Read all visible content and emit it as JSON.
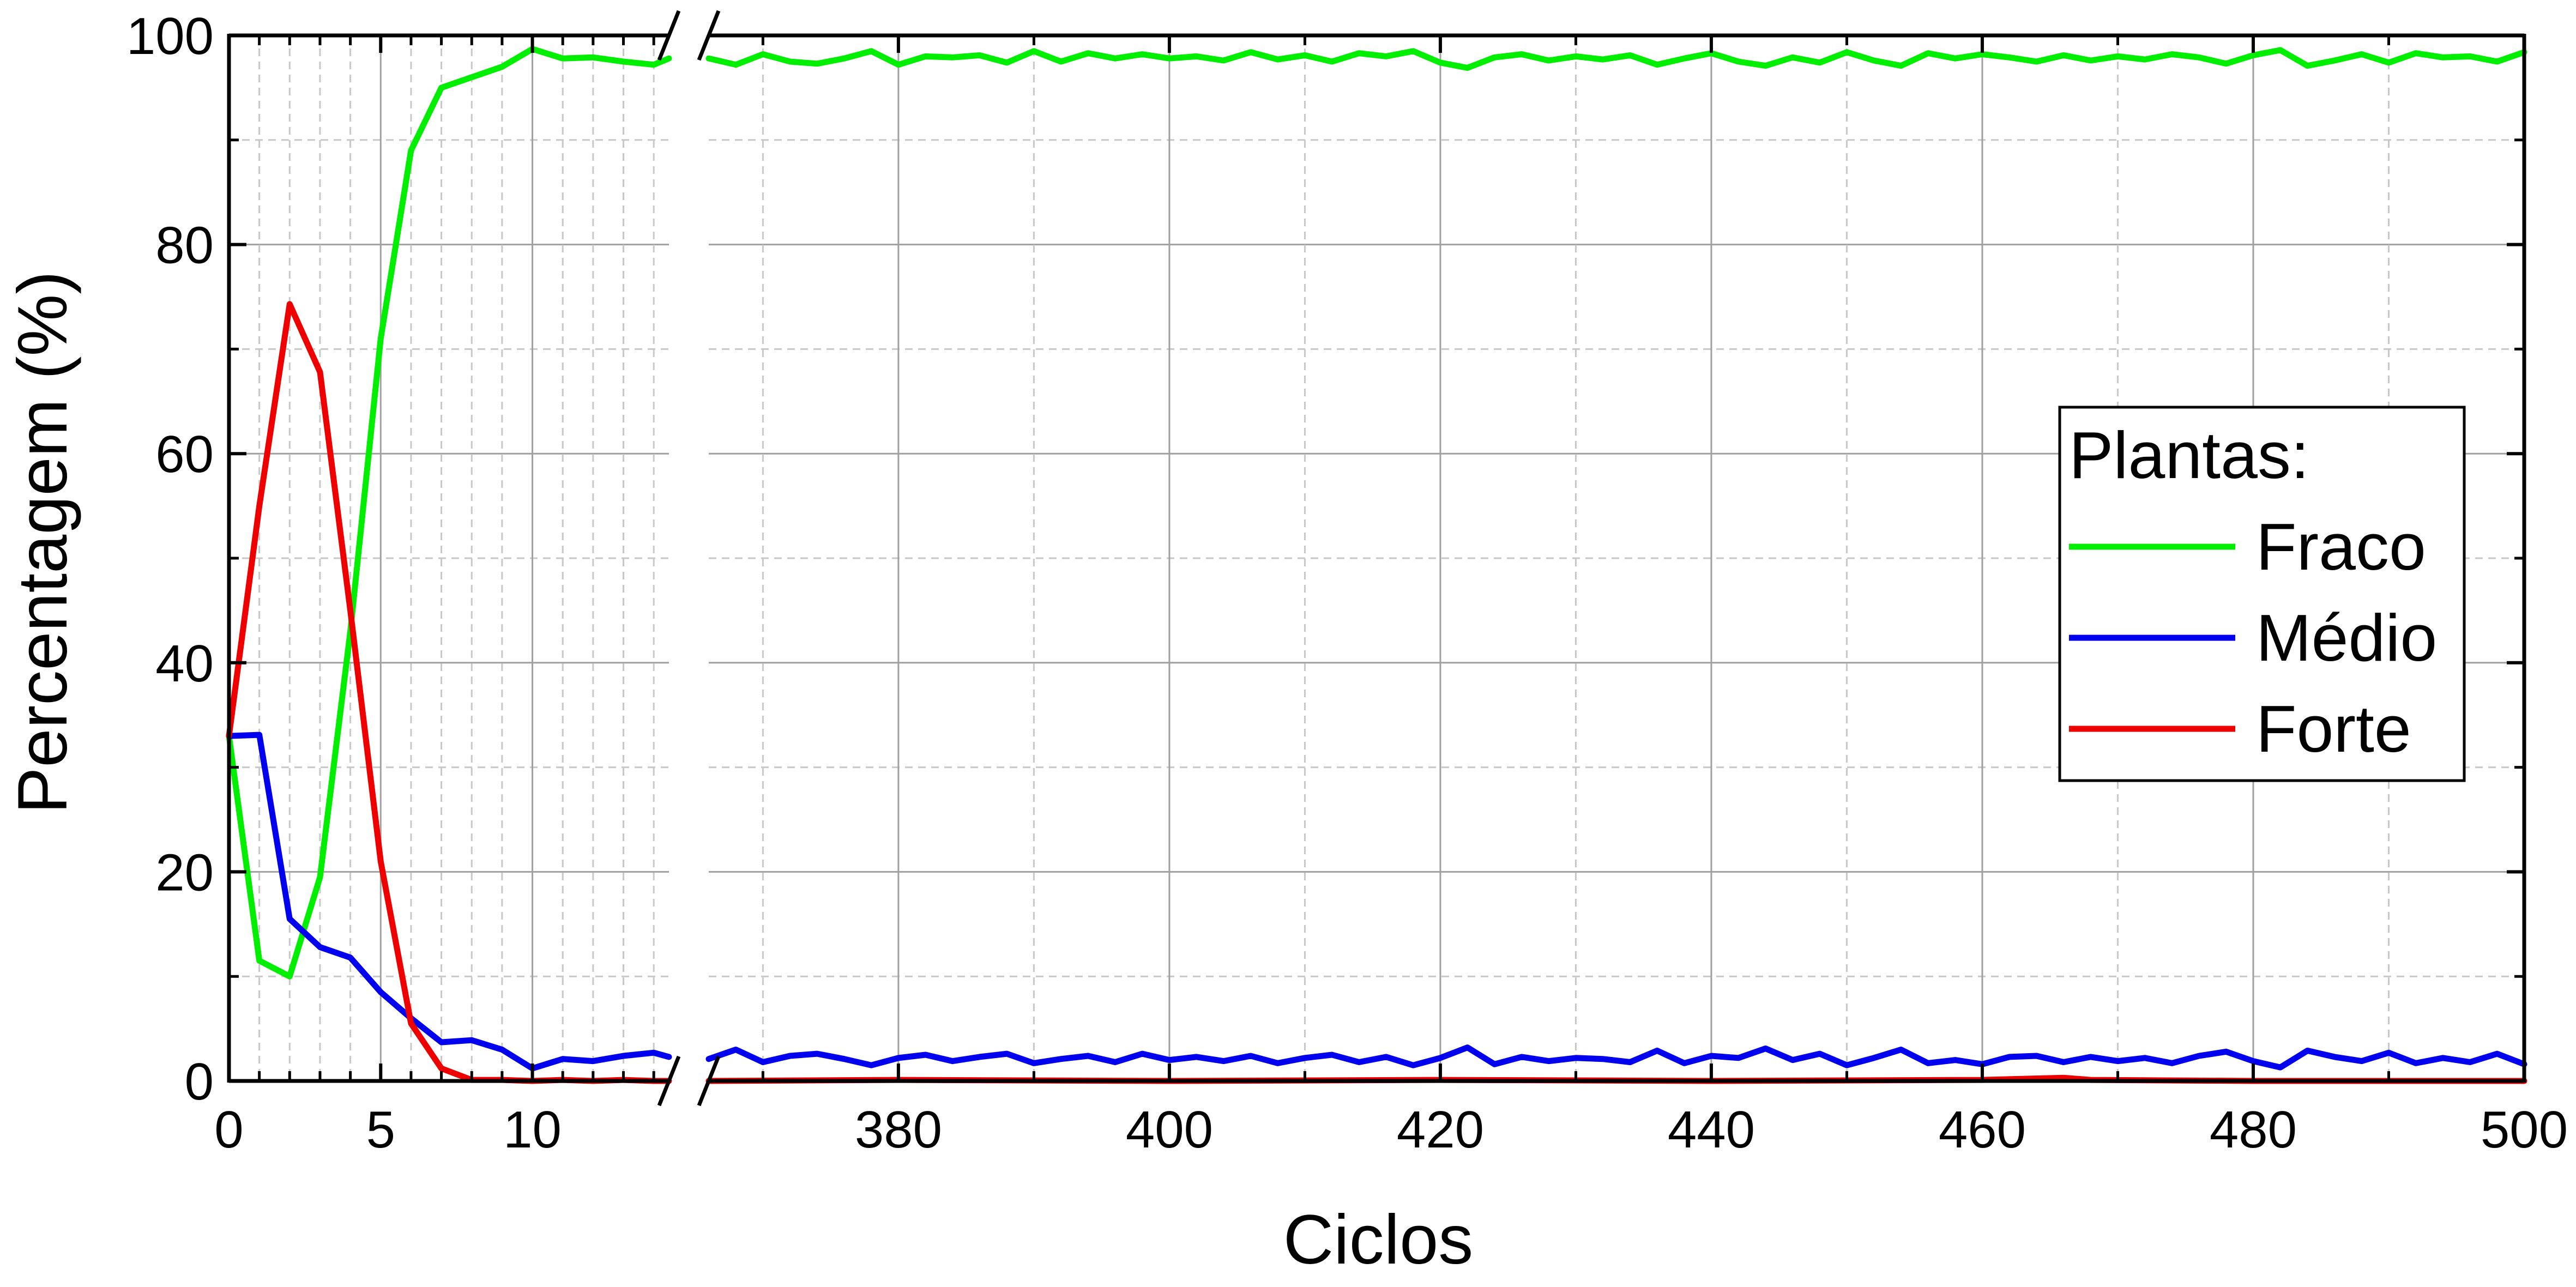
{
  "chart_data": {
    "type": "line",
    "title": "",
    "xlabel": "Ciclos",
    "ylabel": "Percentagem (%)",
    "ylim": [
      0,
      100
    ],
    "yticks": [
      0,
      20,
      40,
      60,
      80,
      100
    ],
    "grid": true,
    "x_axis_break": true,
    "xsegments": [
      {
        "xlim": [
          0,
          14.5
        ],
        "ticks": [
          0,
          5,
          10
        ]
      },
      {
        "xlim": [
          366,
          500
        ],
        "ticks": [
          380,
          400,
          420,
          440,
          460,
          480,
          500
        ]
      }
    ],
    "legend": {
      "title": "Plantas:",
      "placement": "right",
      "entries": [
        "Fraco",
        "Médio",
        "Forte"
      ]
    },
    "series": [
      {
        "name": "Fraco",
        "color": "#00ee00",
        "points": [
          [
            0,
            33
          ],
          [
            1,
            11.5
          ],
          [
            2,
            10
          ],
          [
            3,
            19.5
          ],
          [
            4,
            43
          ],
          [
            5,
            71
          ],
          [
            6,
            89
          ],
          [
            7,
            95
          ],
          [
            8,
            96
          ],
          [
            9,
            97
          ],
          [
            10,
            98.7
          ],
          [
            11,
            97.8
          ],
          [
            12,
            97.9
          ],
          [
            13,
            97.5
          ],
          [
            14,
            97.2
          ],
          [
            14.5,
            97.8
          ],
          [
            366,
            97.8
          ],
          [
            368,
            97.2
          ],
          [
            370,
            98.2
          ],
          [
            372,
            97.5
          ],
          [
            374,
            97.3
          ],
          [
            376,
            97.8
          ],
          [
            378,
            98.5
          ],
          [
            380,
            97.2
          ],
          [
            382,
            98
          ],
          [
            384,
            97.9
          ],
          [
            386,
            98.1
          ],
          [
            388,
            97.4
          ],
          [
            390,
            98.5
          ],
          [
            392,
            97.5
          ],
          [
            394,
            98.3
          ],
          [
            396,
            97.8
          ],
          [
            398,
            98.2
          ],
          [
            400,
            97.8
          ],
          [
            402,
            98
          ],
          [
            404,
            97.6
          ],
          [
            406,
            98.4
          ],
          [
            408,
            97.7
          ],
          [
            410,
            98.1
          ],
          [
            412,
            97.5
          ],
          [
            414,
            98.3
          ],
          [
            416,
            98
          ],
          [
            418,
            98.5
          ],
          [
            420,
            97.4
          ],
          [
            422,
            96.9
          ],
          [
            424,
            97.9
          ],
          [
            426,
            98.2
          ],
          [
            428,
            97.6
          ],
          [
            430,
            98
          ],
          [
            432,
            97.7
          ],
          [
            434,
            98.1
          ],
          [
            436,
            97.2
          ],
          [
            438,
            97.8
          ],
          [
            440,
            98.3
          ],
          [
            442,
            97.5
          ],
          [
            444,
            97.1
          ],
          [
            446,
            97.9
          ],
          [
            448,
            97.4
          ],
          [
            450,
            98.4
          ],
          [
            452,
            97.6
          ],
          [
            454,
            97.1
          ],
          [
            456,
            98.3
          ],
          [
            458,
            97.8
          ],
          [
            460,
            98.2
          ],
          [
            462,
            97.9
          ],
          [
            464,
            97.5
          ],
          [
            466,
            98.1
          ],
          [
            468,
            97.6
          ],
          [
            470,
            98
          ],
          [
            472,
            97.7
          ],
          [
            474,
            98.2
          ],
          [
            476,
            97.9
          ],
          [
            478,
            97.3
          ],
          [
            480,
            98.1
          ],
          [
            482,
            98.6
          ],
          [
            484,
            97.1
          ],
          [
            486,
            97.6
          ],
          [
            488,
            98.2
          ],
          [
            490,
            97.4
          ],
          [
            492,
            98.3
          ],
          [
            494,
            97.9
          ],
          [
            496,
            98
          ],
          [
            498,
            97.5
          ],
          [
            500,
            98.4
          ]
        ]
      },
      {
        "name": "Médio",
        "color": "#0000ee",
        "points": [
          [
            0,
            33
          ],
          [
            1,
            33.1
          ],
          [
            2,
            15.5
          ],
          [
            3,
            12.8
          ],
          [
            4,
            11.8
          ],
          [
            5,
            8.5
          ],
          [
            6,
            6
          ],
          [
            7,
            3.7
          ],
          [
            8,
            3.9
          ],
          [
            9,
            3
          ],
          [
            10,
            1.2
          ],
          [
            11,
            2.1
          ],
          [
            12,
            1.9
          ],
          [
            13,
            2.4
          ],
          [
            14,
            2.7
          ],
          [
            14.5,
            2.3
          ],
          [
            366,
            2.1
          ],
          [
            368,
            3
          ],
          [
            370,
            1.8
          ],
          [
            372,
            2.4
          ],
          [
            374,
            2.6
          ],
          [
            376,
            2.1
          ],
          [
            378,
            1.5
          ],
          [
            380,
            2.2
          ],
          [
            382,
            2.5
          ],
          [
            384,
            1.9
          ],
          [
            386,
            2.3
          ],
          [
            388,
            2.6
          ],
          [
            390,
            1.7
          ],
          [
            392,
            2.1
          ],
          [
            394,
            2.4
          ],
          [
            396,
            1.8
          ],
          [
            398,
            2.6
          ],
          [
            400,
            2
          ],
          [
            402,
            2.3
          ],
          [
            404,
            1.9
          ],
          [
            406,
            2.4
          ],
          [
            408,
            1.7
          ],
          [
            410,
            2.2
          ],
          [
            412,
            2.5
          ],
          [
            414,
            1.8
          ],
          [
            416,
            2.3
          ],
          [
            418,
            1.5
          ],
          [
            420,
            2.2
          ],
          [
            422,
            3.2
          ],
          [
            424,
            1.6
          ],
          [
            426,
            2.3
          ],
          [
            428,
            1.9
          ],
          [
            430,
            2.2
          ],
          [
            432,
            2.1
          ],
          [
            434,
            1.8
          ],
          [
            436,
            2.9
          ],
          [
            438,
            1.7
          ],
          [
            440,
            2.4
          ],
          [
            442,
            2.2
          ],
          [
            444,
            3.1
          ],
          [
            446,
            2
          ],
          [
            448,
            2.6
          ],
          [
            450,
            1.5
          ],
          [
            452,
            2.2
          ],
          [
            454,
            3
          ],
          [
            456,
            1.7
          ],
          [
            458,
            2
          ],
          [
            460,
            1.6
          ],
          [
            462,
            2.3
          ],
          [
            464,
            2.4
          ],
          [
            466,
            1.8
          ],
          [
            468,
            2.3
          ],
          [
            470,
            1.9
          ],
          [
            472,
            2.2
          ],
          [
            474,
            1.7
          ],
          [
            476,
            2.4
          ],
          [
            478,
            2.8
          ],
          [
            480,
            1.9
          ],
          [
            482,
            1.3
          ],
          [
            484,
            2.9
          ],
          [
            486,
            2.3
          ],
          [
            488,
            1.9
          ],
          [
            490,
            2.7
          ],
          [
            492,
            1.7
          ],
          [
            494,
            2.2
          ],
          [
            496,
            1.8
          ],
          [
            498,
            2.6
          ],
          [
            500,
            1.6
          ]
        ]
      },
      {
        "name": "Forte",
        "color": "#ee0000",
        "points": [
          [
            0,
            33
          ],
          [
            1,
            55
          ],
          [
            2,
            74.3
          ],
          [
            3,
            67.8
          ],
          [
            4,
            45
          ],
          [
            5,
            21
          ],
          [
            6,
            5.5
          ],
          [
            7,
            1.2
          ],
          [
            8,
            0.1
          ],
          [
            9,
            0.1
          ],
          [
            10,
            0
          ],
          [
            11,
            0.1
          ],
          [
            12,
            0
          ],
          [
            13,
            0.1
          ],
          [
            14,
            0
          ],
          [
            14.5,
            0
          ],
          [
            366,
            0
          ],
          [
            380,
            0.1
          ],
          [
            400,
            0
          ],
          [
            420,
            0.1
          ],
          [
            440,
            0
          ],
          [
            460,
            0.1
          ],
          [
            466,
            0.3
          ],
          [
            468,
            0.1
          ],
          [
            480,
            0
          ],
          [
            500,
            0
          ]
        ]
      }
    ]
  }
}
